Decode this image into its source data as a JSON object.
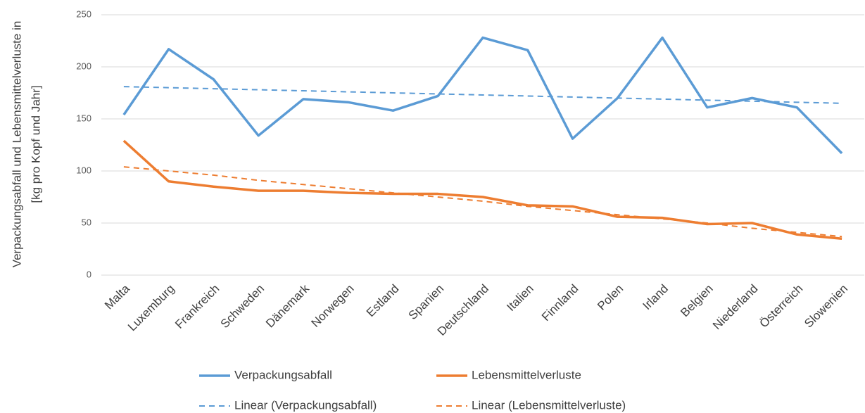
{
  "chart_data": {
    "type": "line",
    "y_label_lines": [
      "Verpackungsabfall und Lebensmittelverluste in",
      "[kg pro Kopf und Jahr]"
    ],
    "categories": [
      "Malta",
      "Luxemburg",
      "Frankreich",
      "Schweden",
      "Dänemark",
      "Norwegen",
      "Estland",
      "Spanien",
      "Deutschland",
      "Italien",
      "Finnland",
      "Polen",
      "Irland",
      "Belgien",
      "Niederland",
      "Österreich",
      "Slowenien"
    ],
    "series": [
      {
        "name": "Verpackungsabfall",
        "color": "#5b9bd5",
        "dashed": false,
        "values": [
          154,
          217,
          188,
          134,
          169,
          166,
          158,
          172,
          228,
          216,
          131,
          170,
          228,
          161,
          170,
          161,
          117
        ]
      },
      {
        "name": "Lebensmittelverluste",
        "color": "#ed7d31",
        "dashed": false,
        "values": [
          129,
          90,
          85,
          81,
          81,
          79,
          78,
          78,
          75,
          67,
          66,
          56,
          55,
          49,
          50,
          39,
          35
        ]
      },
      {
        "name": "Linear (Verpackungsabfall)",
        "color": "#5b9bd5",
        "dashed": true,
        "values": [
          181,
          180,
          179,
          178,
          177,
          176,
          175,
          174,
          173,
          172,
          171,
          170,
          169,
          168,
          167,
          166,
          165
        ]
      },
      {
        "name": "Linear (Lebensmittelverluste)",
        "color": "#ed7d31",
        "dashed": true,
        "values": [
          104,
          100,
          96,
          91,
          87,
          83,
          79,
          75,
          71,
          66,
          62,
          58,
          54,
          50,
          45,
          41,
          37
        ]
      }
    ],
    "ylim": [
      0,
      250
    ],
    "yticks": [
      0,
      50,
      100,
      150,
      200,
      250
    ],
    "grid": true
  }
}
